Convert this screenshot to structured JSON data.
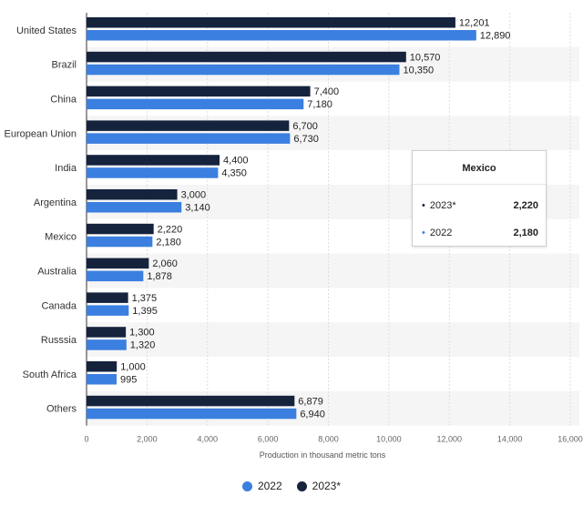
{
  "chart_data": {
    "type": "bar",
    "orientation": "horizontal",
    "categories": [
      "United States",
      "Brazil",
      "China",
      "European Union",
      "India",
      "Argentina",
      "Mexico",
      "Australia",
      "Canada",
      "Russsia",
      "South Africa",
      "Others"
    ],
    "series": [
      {
        "name": "2023*",
        "color": "#15233d",
        "values": [
          12201,
          10570,
          7400,
          6700,
          4400,
          3000,
          2220,
          2060,
          1375,
          1300,
          1000,
          6879
        ],
        "labels": [
          "12,201",
          "10,570",
          "7,400",
          "6,700",
          "4,400",
          "3,000",
          "2,220",
          "2,060",
          "1,375",
          "1,300",
          "1,000",
          "6,879"
        ]
      },
      {
        "name": "2022",
        "color": "#3b7fe0",
        "values": [
          12890,
          10350,
          7180,
          6730,
          4350,
          3140,
          2180,
          1878,
          1395,
          1320,
          995,
          6940
        ],
        "labels": [
          "12,890",
          "10,350",
          "7,180",
          "6,730",
          "4,350",
          "3,140",
          "2,180",
          "1,878",
          "1,395",
          "1,320",
          "995",
          "6,940"
        ]
      }
    ],
    "xlabel": "Production in thousand metric tons",
    "xlim": [
      0,
      16000
    ],
    "xticks": [
      0,
      2000,
      4000,
      6000,
      8000,
      10000,
      12000,
      14000,
      16000
    ],
    "xtick_labels": [
      "0",
      "2,000",
      "4,000",
      "6,000",
      "8,000",
      "10,000",
      "12,000",
      "14,000",
      "16,000"
    ],
    "grid": true,
    "legend": {
      "placement": "bottom-center",
      "entries": [
        "2022",
        "2023*"
      ]
    }
  },
  "legend": {
    "item_2022": "2022",
    "item_2023": "2023*"
  },
  "tooltip": {
    "title": "Mexico",
    "rows": [
      {
        "name": "2023*",
        "value": "2,220",
        "color": "#15233d"
      },
      {
        "name": "2022",
        "value": "2,180",
        "color": "#3b7fe0"
      }
    ]
  }
}
